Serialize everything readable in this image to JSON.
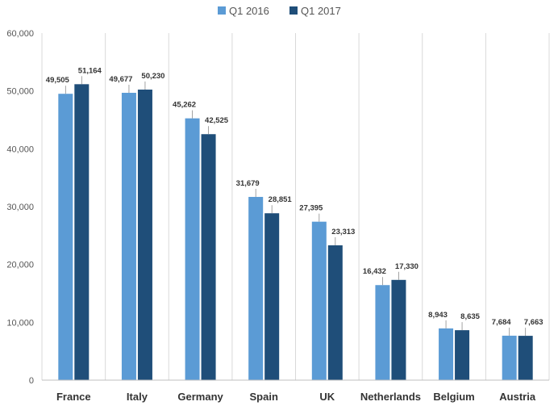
{
  "chart_data": {
    "type": "bar",
    "categories": [
      "France",
      "Italy",
      "Germany",
      "Spain",
      "UK",
      "Netherlands",
      "Belgium",
      "Austria"
    ],
    "series": [
      {
        "name": "Q1 2016",
        "values": [
          49505,
          49677,
          45262,
          31679,
          27395,
          16432,
          8943,
          7684
        ],
        "color": "#5b9bd5"
      },
      {
        "name": "Q1 2017",
        "values": [
          51164,
          50230,
          42525,
          28851,
          23313,
          17330,
          8635,
          7663
        ],
        "color": "#1f4e79"
      }
    ],
    "data_labels": [
      [
        "49,505",
        "49,677",
        "45,262",
        "31,679",
        "27,395",
        "16,432",
        "8,943",
        "7,684"
      ],
      [
        "51,164",
        "50,230",
        "42,525",
        "28,851",
        "23,313",
        "17,330",
        "8,635",
        "7,663"
      ]
    ],
    "ylim": [
      0,
      60000
    ],
    "yticks": [
      0,
      10000,
      20000,
      30000,
      40000,
      50000,
      60000
    ],
    "ytick_labels": [
      "0",
      "10,000",
      "20,000",
      "30,000",
      "40,000",
      "50,000",
      "60,000"
    ],
    "grid": "vertical-category-separators",
    "legend_position": "top-center",
    "title": "",
    "xlabel": "",
    "ylabel": ""
  }
}
